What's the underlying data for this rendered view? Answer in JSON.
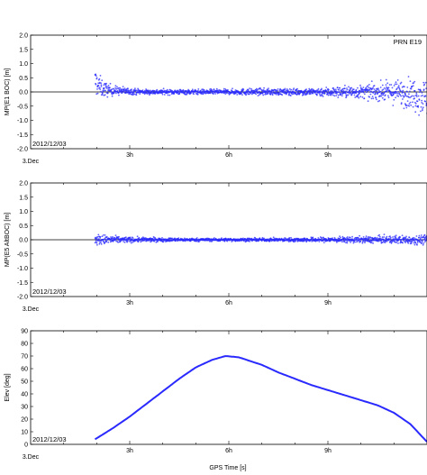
{
  "figure": {
    "prn_label": "PRN E19",
    "xlabel": "GPS Time [s]",
    "date_label": "2012/12/03",
    "x_start_label": "3.Dec",
    "x_tick_labels": [
      "3h",
      "6h",
      "9h"
    ]
  },
  "chart_data": [
    {
      "type": "scatter",
      "ylabel": "MP(E1 BOC) [m]",
      "ylim": [
        -2.0,
        2.0
      ],
      "yticks": [
        "2.0",
        "1.5",
        "1.0",
        "0.5",
        "0.0",
        "-0.5",
        "-1.0",
        "-1.5",
        "-2.0"
      ],
      "xlim_hours": [
        0,
        12
      ],
      "zero_line": true,
      "series": [
        {
          "x_hours": [
            1.95,
            2.05,
            2.2,
            2.5,
            3.0,
            3.5,
            4.0,
            4.5,
            5.0,
            5.5,
            6.0,
            6.5,
            7.0,
            7.5,
            8.0,
            8.5,
            9.0,
            9.5,
            10.0,
            10.5,
            11.0,
            11.5,
            12.0
          ],
          "y_mean": [
            0.35,
            0.25,
            0.1,
            0.05,
            0.02,
            0.0,
            0.0,
            0.0,
            0.0,
            0.0,
            0.0,
            0.0,
            0.0,
            0.0,
            0.0,
            0.0,
            0.0,
            0.0,
            0.0,
            0.0,
            0.0,
            -0.05,
            -0.2
          ],
          "y_spread": [
            0.45,
            0.35,
            0.25,
            0.15,
            0.1,
            0.08,
            0.08,
            0.08,
            0.08,
            0.08,
            0.08,
            0.1,
            0.1,
            0.1,
            0.1,
            0.12,
            0.15,
            0.18,
            0.2,
            0.25,
            0.35,
            0.45,
            0.6
          ],
          "color": "#2a2aff"
        }
      ]
    },
    {
      "type": "scatter",
      "ylabel": "MP(E5 AltBOC) [m]",
      "ylim": [
        -2.0,
        2.0
      ],
      "yticks": [
        "2.0",
        "1.5",
        "1.0",
        "0.5",
        "0.0",
        "-0.5",
        "-1.0",
        "-1.5",
        "-2.0"
      ],
      "xlim_hours": [
        0,
        12
      ],
      "zero_line": true,
      "series": [
        {
          "x_hours": [
            1.95,
            2.5,
            3.0,
            4.0,
            5.0,
            6.0,
            7.0,
            8.0,
            9.0,
            10.0,
            11.0,
            12.0
          ],
          "y_mean": [
            0.0,
            0.0,
            0.0,
            0.0,
            0.0,
            0.0,
            0.0,
            0.0,
            0.0,
            0.0,
            0.0,
            0.0
          ],
          "y_spread": [
            0.18,
            0.12,
            0.08,
            0.06,
            0.05,
            0.05,
            0.05,
            0.06,
            0.08,
            0.1,
            0.12,
            0.15
          ],
          "color": "#2a2aff"
        }
      ]
    },
    {
      "type": "line",
      "ylabel": "Elev [deg]",
      "ylim": [
        0,
        90
      ],
      "yticks": [
        "90",
        "80",
        "70",
        "60",
        "50",
        "40",
        "30",
        "20",
        "10",
        "0"
      ],
      "xlim_hours": [
        0,
        12
      ],
      "zero_line": false,
      "series": [
        {
          "x_hours": [
            1.95,
            2.5,
            3.0,
            3.5,
            4.0,
            4.5,
            5.0,
            5.5,
            5.9,
            6.3,
            7.0,
            7.5,
            8.0,
            8.5,
            9.0,
            9.5,
            10.0,
            10.5,
            11.0,
            11.5,
            12.0
          ],
          "y": [
            4,
            13,
            22,
            32,
            42,
            52,
            61,
            67,
            70,
            69,
            63,
            57,
            52,
            47,
            43,
            39,
            35,
            31,
            25,
            16,
            2
          ],
          "color": "#2a2aff"
        }
      ]
    }
  ]
}
